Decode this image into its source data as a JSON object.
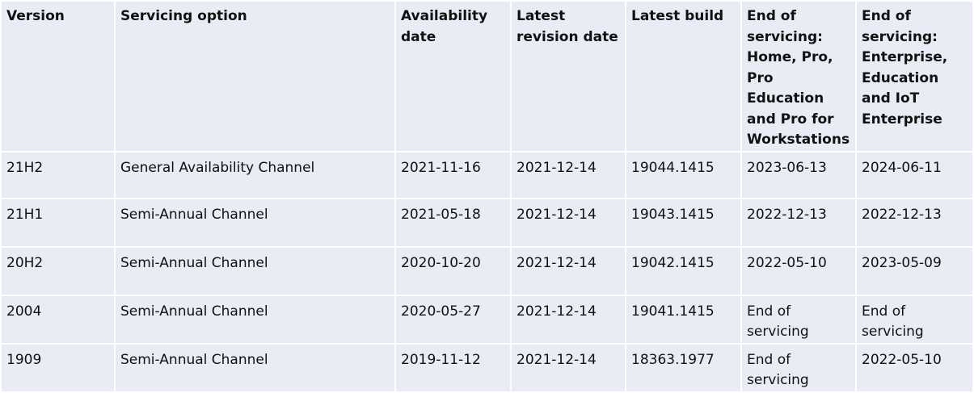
{
  "table": {
    "headers": [
      "Version",
      "Servicing option",
      "Availability date",
      "Latest revision date",
      "Latest build",
      "End of servicing: Home, Pro, Pro Education and Pro for Workstations",
      "End of servicing: Enterprise, Education and IoT Enterprise"
    ],
    "rows": [
      [
        "21H2",
        "General Availability Channel",
        "2021-11-16",
        "2021-12-14",
        "19044.1415",
        "2023-06-13",
        "2024-06-11"
      ],
      [
        "21H1",
        "Semi-Annual Channel",
        "2021-05-18",
        "2021-12-14",
        "19043.1415",
        "2022-12-13",
        "2022-12-13"
      ],
      [
        "20H2",
        "Semi-Annual Channel",
        "2020-10-20",
        "2021-12-14",
        "19042.1415",
        "2022-05-10",
        "2023-05-09"
      ],
      [
        "2004",
        "Semi-Annual Channel",
        "2020-05-27",
        "2021-12-14",
        "19041.1415",
        "End of servicing",
        "End of servicing"
      ],
      [
        "1909",
        "Semi-Annual Channel",
        "2019-11-12",
        "2021-12-14",
        "18363.1977",
        "End of servicing",
        "2022-05-10"
      ]
    ]
  },
  "colors": {
    "cell_background": "#e9ebf5",
    "grid_lines": "#ffffff",
    "text": "#111111"
  }
}
